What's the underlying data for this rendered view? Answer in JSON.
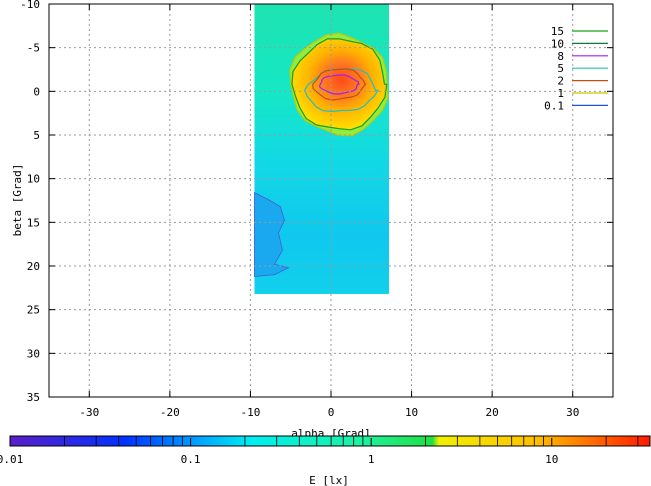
{
  "chart_data": {
    "type": "heatmap",
    "xlabel": "alpha [Grad]",
    "ylabel": "beta [Grad]",
    "xlim": [
      -35,
      35
    ],
    "ylim": [
      -10,
      35
    ],
    "y_reversed": true,
    "xticks": [
      -30,
      -20,
      -10,
      0,
      10,
      20,
      30
    ],
    "yticks": [
      -10,
      -5,
      0,
      5,
      10,
      15,
      20,
      25,
      30,
      35
    ],
    "grid": true,
    "data_extent": {
      "alpha": [
        -9.5,
        7.2
      ],
      "beta": [
        -10,
        23.2
      ]
    },
    "contour_legend_placement": "top-right",
    "contours": [
      {
        "level": "15",
        "color": "#1a9e1a"
      },
      {
        "level": "10",
        "color": "#0a7a40"
      },
      {
        "level": "8",
        "color": "#a020f0"
      },
      {
        "level": "5",
        "color": "#20c0c0"
      },
      {
        "level": "2",
        "color": "#c05010"
      },
      {
        "level": "1",
        "color": "#c8c800"
      },
      {
        "level": "0.1",
        "color": "#2050e0"
      }
    ],
    "colorbar": {
      "label": "E [lx]",
      "scale": "log",
      "range": [
        0.01,
        35
      ],
      "ticks": [
        "0.01",
        "0.1",
        "1",
        "10"
      ]
    }
  }
}
